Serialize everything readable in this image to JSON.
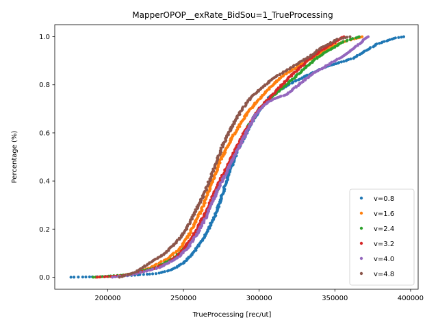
{
  "chart_data": {
    "type": "scatter",
    "title": "MapperOPOP__exRate_BidSou=1_TrueProcessing",
    "xlabel": "TrueProcessing [rec/ut]",
    "ylabel": "Percentage (%)",
    "xlim": [
      165000,
      405000
    ],
    "ylim": [
      -0.05,
      1.05
    ],
    "xticks": [
      200000,
      250000,
      300000,
      350000,
      400000
    ],
    "xtick_labels": [
      "200000",
      "250000",
      "300000",
      "350000",
      "400000"
    ],
    "yticks": [
      0.0,
      0.2,
      0.4,
      0.6,
      0.8,
      1.0
    ],
    "ytick_labels": [
      "0.0",
      "0.2",
      "0.4",
      "0.6",
      "0.8",
      "1.0"
    ],
    "grid": false,
    "legend_position": "lower-right",
    "series": [
      {
        "name": "v=0.8",
        "color": "#1f77b4",
        "points": [
          [
            175500,
            0.0
          ],
          [
            205000,
            0.003
          ],
          [
            232000,
            0.015
          ],
          [
            242000,
            0.03
          ],
          [
            250000,
            0.06
          ],
          [
            255000,
            0.09
          ],
          [
            260000,
            0.13
          ],
          [
            265000,
            0.18
          ],
          [
            268000,
            0.22
          ],
          [
            271000,
            0.26
          ],
          [
            274000,
            0.31
          ],
          [
            276000,
            0.35
          ],
          [
            278000,
            0.39
          ],
          [
            280000,
            0.43
          ],
          [
            283000,
            0.48
          ],
          [
            286000,
            0.53
          ],
          [
            290000,
            0.58
          ],
          [
            294000,
            0.63
          ],
          [
            298000,
            0.67
          ],
          [
            302000,
            0.71
          ],
          [
            307000,
            0.75
          ],
          [
            314000,
            0.78
          ],
          [
            322000,
            0.81
          ],
          [
            332000,
            0.84
          ],
          [
            342000,
            0.87
          ],
          [
            352000,
            0.89
          ],
          [
            362000,
            0.91
          ],
          [
            370000,
            0.94
          ],
          [
            378000,
            0.97
          ],
          [
            385000,
            0.985
          ],
          [
            390000,
            0.995
          ],
          [
            395500,
            1.0
          ]
        ]
      },
      {
        "name": "v=1.6",
        "color": "#ff7f0e",
        "points": [
          [
            192000,
            0.0
          ],
          [
            207000,
            0.005
          ],
          [
            220000,
            0.02
          ],
          [
            230000,
            0.045
          ],
          [
            240000,
            0.08
          ],
          [
            248000,
            0.12
          ],
          [
            254000,
            0.18
          ],
          [
            258000,
            0.23
          ],
          [
            262000,
            0.28
          ],
          [
            265000,
            0.33
          ],
          [
            268000,
            0.38
          ],
          [
            271000,
            0.43
          ],
          [
            274000,
            0.48
          ],
          [
            278000,
            0.53
          ],
          [
            282000,
            0.58
          ],
          [
            287000,
            0.63
          ],
          [
            292000,
            0.68
          ],
          [
            297000,
            0.72
          ],
          [
            303000,
            0.76
          ],
          [
            309000,
            0.8
          ],
          [
            316000,
            0.84
          ],
          [
            324000,
            0.87
          ],
          [
            332000,
            0.9
          ],
          [
            340000,
            0.93
          ],
          [
            348000,
            0.96
          ],
          [
            356000,
            0.98
          ],
          [
            368000,
            1.0
          ]
        ]
      },
      {
        "name": "v=2.4",
        "color": "#2ca02c",
        "points": [
          [
            190500,
            0.0
          ],
          [
            212000,
            0.01
          ],
          [
            232000,
            0.04
          ],
          [
            244000,
            0.08
          ],
          [
            252000,
            0.13
          ],
          [
            258000,
            0.18
          ],
          [
            263000,
            0.24
          ],
          [
            267000,
            0.29
          ],
          [
            271000,
            0.34
          ],
          [
            274000,
            0.39
          ],
          [
            278000,
            0.44
          ],
          [
            282000,
            0.49
          ],
          [
            286000,
            0.54
          ],
          [
            290000,
            0.59
          ],
          [
            294000,
            0.64
          ],
          [
            299000,
            0.69
          ],
          [
            305000,
            0.73
          ],
          [
            312000,
            0.77
          ],
          [
            318000,
            0.8
          ],
          [
            325000,
            0.84
          ],
          [
            332000,
            0.88
          ],
          [
            340000,
            0.92
          ],
          [
            348000,
            0.95
          ],
          [
            356000,
            0.98
          ],
          [
            366000,
            1.0
          ]
        ]
      },
      {
        "name": "v=3.2",
        "color": "#d62728",
        "points": [
          [
            193000,
            0.0
          ],
          [
            210000,
            0.007
          ],
          [
            228000,
            0.03
          ],
          [
            240000,
            0.06
          ],
          [
            248000,
            0.1
          ],
          [
            254000,
            0.15
          ],
          [
            259000,
            0.2
          ],
          [
            263000,
            0.25
          ],
          [
            267000,
            0.3
          ],
          [
            270000,
            0.35
          ],
          [
            274000,
            0.4
          ],
          [
            278000,
            0.45
          ],
          [
            282000,
            0.5
          ],
          [
            286000,
            0.55
          ],
          [
            290000,
            0.6
          ],
          [
            295000,
            0.65
          ],
          [
            300000,
            0.7
          ],
          [
            306000,
            0.74
          ],
          [
            312000,
            0.78
          ],
          [
            318000,
            0.82
          ],
          [
            325000,
            0.86
          ],
          [
            332000,
            0.9
          ],
          [
            340000,
            0.94
          ],
          [
            348000,
            0.97
          ],
          [
            356000,
            1.0
          ]
        ]
      },
      {
        "name": "v=4.0",
        "color": "#9467bd",
        "points": [
          [
            203000,
            0.0
          ],
          [
            216000,
            0.01
          ],
          [
            234000,
            0.04
          ],
          [
            246000,
            0.08
          ],
          [
            254000,
            0.13
          ],
          [
            260000,
            0.19
          ],
          [
            265000,
            0.25
          ],
          [
            269000,
            0.31
          ],
          [
            273000,
            0.37
          ],
          [
            277000,
            0.42
          ],
          [
            281000,
            0.47
          ],
          [
            285000,
            0.52
          ],
          [
            289000,
            0.57
          ],
          [
            293000,
            0.62
          ],
          [
            297000,
            0.67
          ],
          [
            302000,
            0.71
          ],
          [
            309000,
            0.74
          ],
          [
            318000,
            0.76
          ],
          [
            326000,
            0.8
          ],
          [
            334000,
            0.84
          ],
          [
            342000,
            0.87
          ],
          [
            350000,
            0.9
          ],
          [
            358000,
            0.93
          ],
          [
            364000,
            0.96
          ],
          [
            368000,
            0.98
          ],
          [
            372000,
            1.0
          ]
        ]
      },
      {
        "name": "v=4.8",
        "color": "#8c564b",
        "points": [
          [
            208000,
            0.0
          ],
          [
            218000,
            0.02
          ],
          [
            228000,
            0.06
          ],
          [
            238000,
            0.1
          ],
          [
            246000,
            0.15
          ],
          [
            252000,
            0.2
          ],
          [
            256000,
            0.25
          ],
          [
            260000,
            0.3
          ],
          [
            264000,
            0.35
          ],
          [
            267000,
            0.4
          ],
          [
            270000,
            0.45
          ],
          [
            273000,
            0.5
          ],
          [
            276000,
            0.55
          ],
          [
            280000,
            0.6
          ],
          [
            284000,
            0.65
          ],
          [
            289000,
            0.7
          ],
          [
            295000,
            0.75
          ],
          [
            302000,
            0.79
          ],
          [
            310000,
            0.83
          ],
          [
            318000,
            0.86
          ],
          [
            326000,
            0.89
          ],
          [
            334000,
            0.92
          ],
          [
            340000,
            0.95
          ],
          [
            346000,
            0.97
          ],
          [
            352000,
            0.99
          ],
          [
            360000,
            1.0
          ]
        ]
      }
    ]
  }
}
